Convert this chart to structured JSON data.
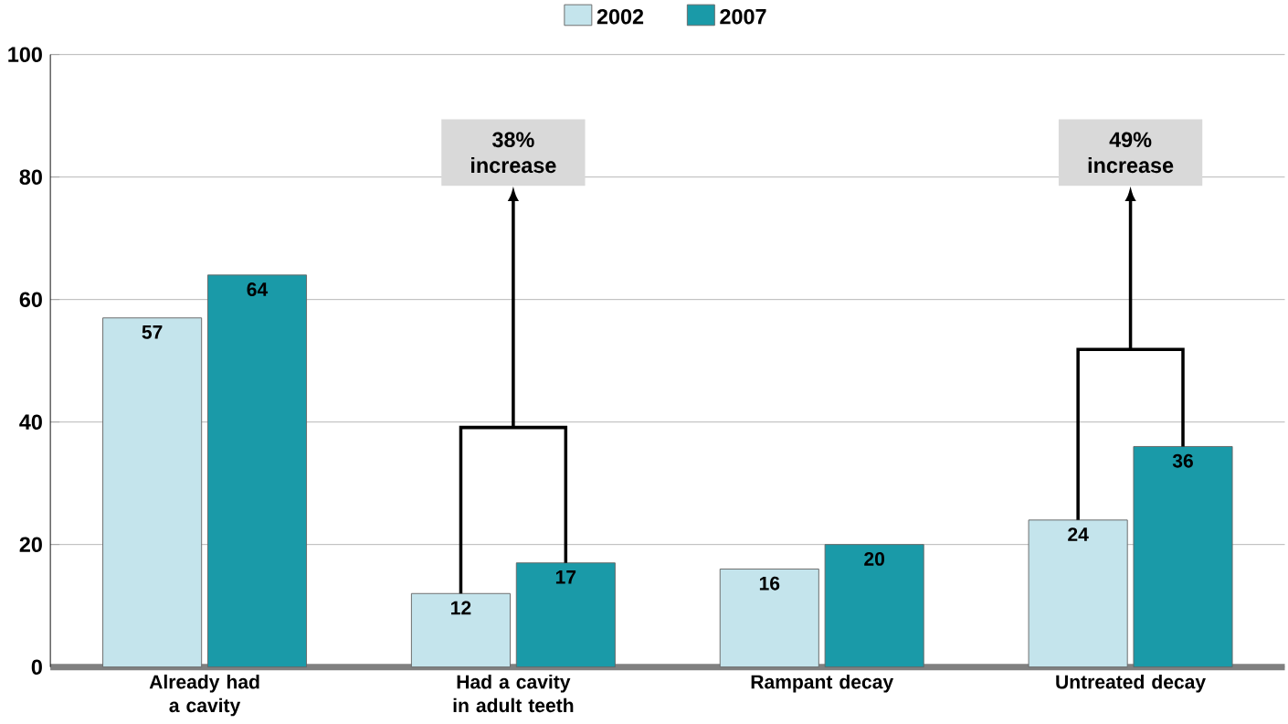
{
  "chart_data": {
    "type": "bar",
    "categories": [
      "Already had a cavity",
      "Had a cavity in adult teeth",
      "Rampant decay",
      "Untreated decay"
    ],
    "series": [
      {
        "name": "2002",
        "color": "#c4e4ec",
        "values": [
          57,
          12,
          16,
          24
        ]
      },
      {
        "name": "2007",
        "color": "#1a9aa8",
        "values": [
          64,
          17,
          20,
          36
        ]
      }
    ],
    "ylim": [
      0,
      100
    ],
    "yticks": [
      0,
      20,
      40,
      60,
      80,
      100
    ],
    "grid": "y",
    "legend": "top",
    "data_labels": true,
    "annotations": [
      "38% increase",
      "49% increase"
    ]
  }
}
